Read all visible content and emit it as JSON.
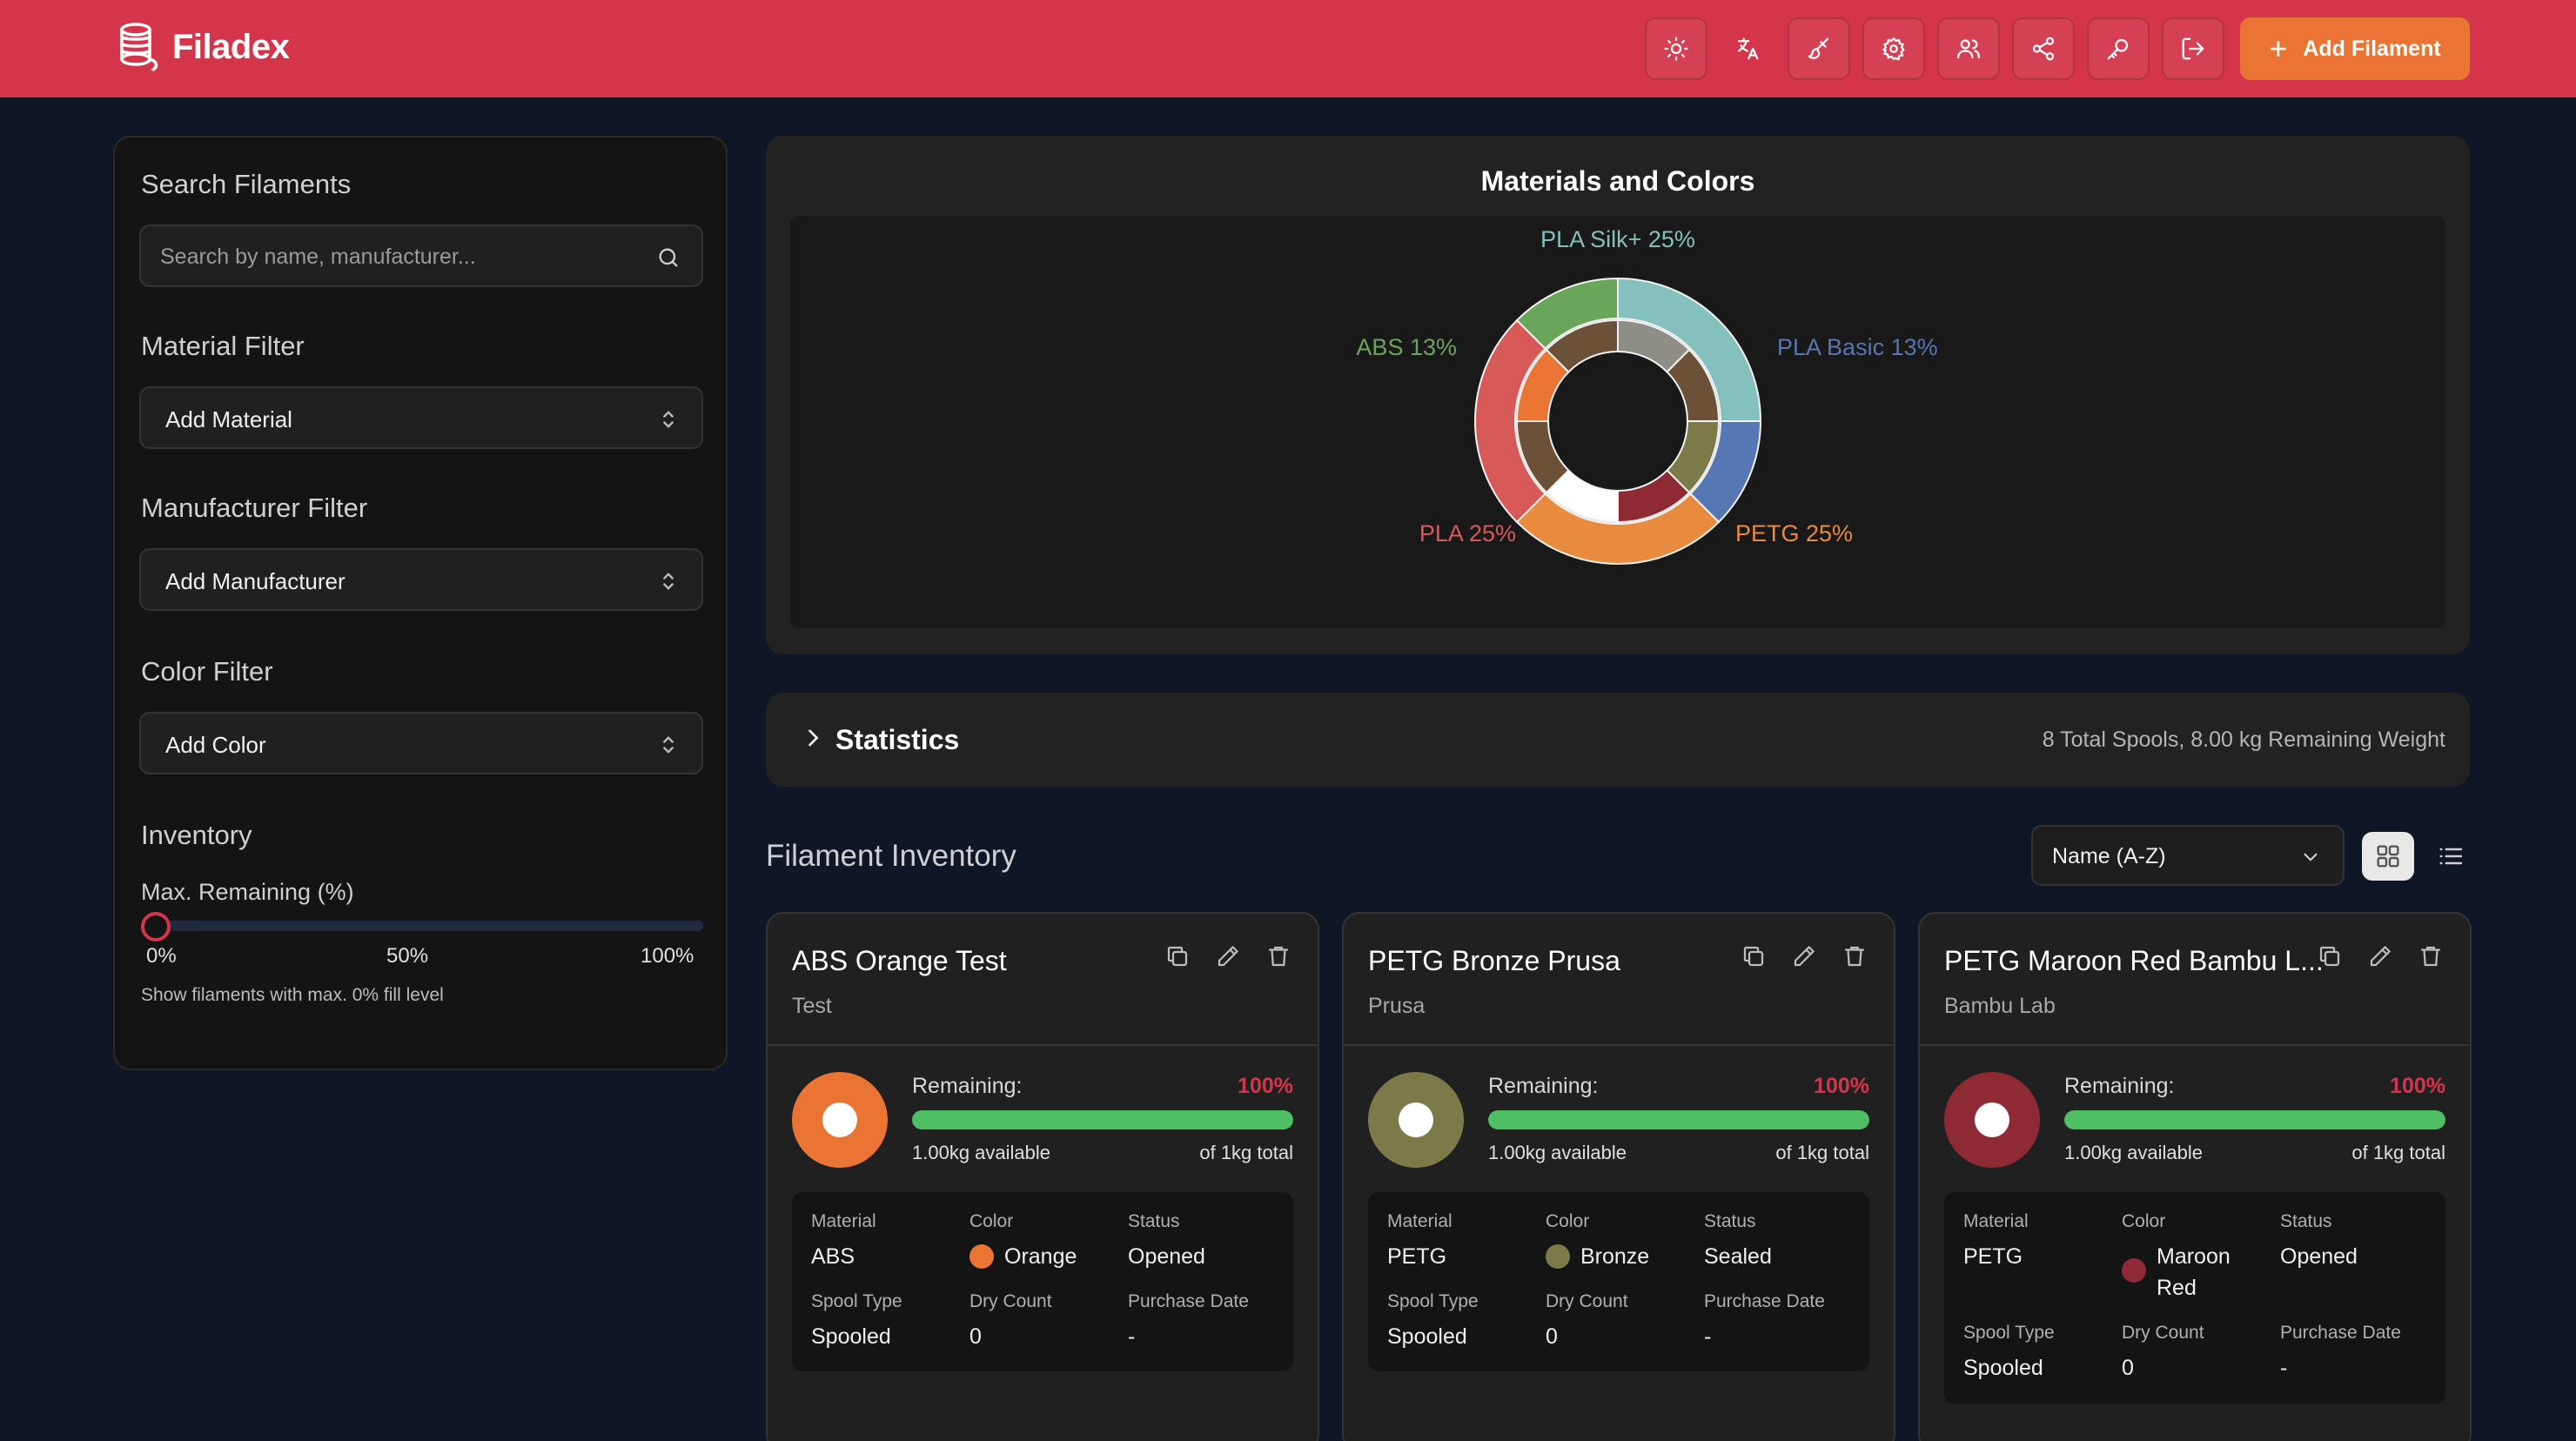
{
  "app": {
    "title": "Filadex"
  },
  "header": {
    "icons": [
      "sun-icon",
      "translate-icon",
      "brush-icon",
      "gear-icon",
      "users-icon",
      "share-icon",
      "key-icon",
      "logout-icon"
    ],
    "add_label": "Add Filament"
  },
  "sidebar": {
    "search_heading": "Search Filaments",
    "search_placeholder": "Search by name, manufacturer...",
    "material_heading": "Material Filter",
    "material_value": "Add Material",
    "manufacturer_heading": "Manufacturer Filter",
    "manufacturer_value": "Add Manufacturer",
    "color_heading": "Color Filter",
    "color_value": "Add Color",
    "inventory_heading": "Inventory",
    "remaining_label": "Max. Remaining (%)",
    "slider_value": 0,
    "slider_ticks": [
      "0%",
      "50%",
      "100%"
    ],
    "help_text": "Show filaments with max. 0% fill level"
  },
  "chart": {
    "title": "Materials and Colors",
    "labels": [
      "PLA Silk+ 25%",
      "PLA Basic 13%",
      "PETG 25%",
      "PLA 25%",
      "ABS 13%"
    ]
  },
  "chart_data": {
    "type": "pie",
    "title": "Materials and Colors",
    "series": [
      {
        "name": "Materials",
        "categories": [
          "PLA Silk+",
          "PLA Basic",
          "PETG",
          "PLA",
          "ABS"
        ],
        "values": [
          25,
          12.5,
          25,
          25,
          12.5
        ],
        "colors": [
          "#84c0bd",
          "#5677b3",
          "#e98b3e",
          "#d85a58",
          "#6aa65a"
        ]
      },
      {
        "name": "Colors",
        "values": [
          12.5,
          12.5,
          12.5,
          12.5,
          12.5,
          12.5,
          12.5,
          12.5
        ],
        "colors": [
          "#8e8e86",
          "#6b5138",
          "#7c7a48",
          "#8e2a34",
          "#ffffff",
          "#6b5138",
          "#e97434",
          "#6b5138"
        ]
      }
    ]
  },
  "statistics": {
    "title": "Statistics",
    "summary": "8 Total Spools, 8.00 kg Remaining Weight"
  },
  "inventory": {
    "title": "Filament Inventory",
    "sort_value": "Name (A-Z)",
    "labels": {
      "remaining": "Remaining:",
      "material": "Material",
      "color": "Color",
      "status": "Status",
      "spool_type": "Spool Type",
      "dry_count": "Dry Count",
      "purchase_date": "Purchase Date"
    },
    "cards": [
      {
        "name": "ABS Orange Test",
        "manufacturer": "Test",
        "color_hex": "#e97434",
        "percent": "100%",
        "fill": 1.0,
        "available": "1.00kg available",
        "total": "of 1kg total",
        "material": "ABS",
        "color": "Orange",
        "status": "Opened",
        "spool_type": "Spooled",
        "dry_count": "0",
        "purchase_date": "-"
      },
      {
        "name": "PETG Bronze Prusa",
        "manufacturer": "Prusa",
        "color_hex": "#7c7a48",
        "percent": "100%",
        "fill": 1.0,
        "available": "1.00kg available",
        "total": "of 1kg total",
        "material": "PETG",
        "color": "Bronze",
        "status": "Sealed",
        "spool_type": "Spooled",
        "dry_count": "0",
        "purchase_date": "-"
      },
      {
        "name": "PETG Maroon Red Bambu L...",
        "manufacturer": "Bambu Lab",
        "color_hex": "#8e2a34",
        "percent": "100%",
        "fill": 1.0,
        "available": "1.00kg available",
        "total": "of 1kg total",
        "material": "PETG",
        "color_line1": "Maroon",
        "color_line2": "Red",
        "status": "Opened",
        "spool_type": "Spooled",
        "dry_count": "0",
        "purchase_date": "-"
      }
    ]
  },
  "colors": {
    "header": "#d4354a",
    "accent": "#e97434",
    "progress": "#4ebf63",
    "background": "#0f1626"
  }
}
